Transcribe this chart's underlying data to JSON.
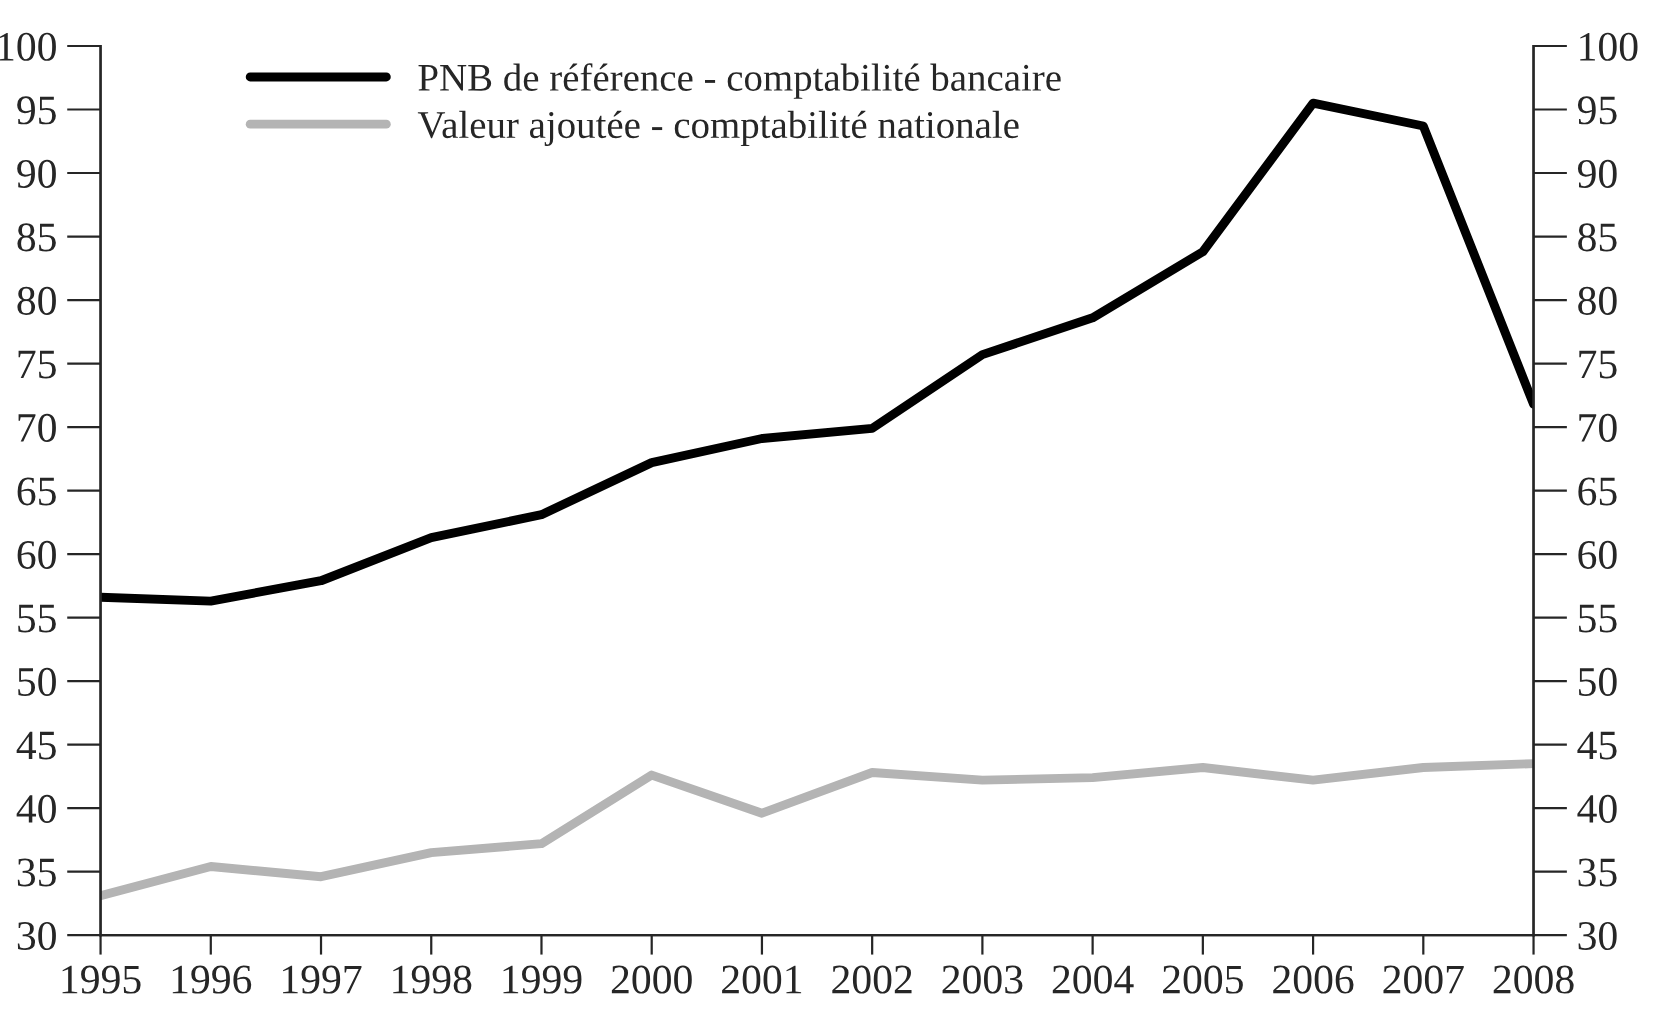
{
  "chart_data": {
    "type": "line",
    "x": [
      1995,
      1996,
      1997,
      1998,
      1999,
      2000,
      2001,
      2002,
      2003,
      2004,
      2005,
      2006,
      2007,
      2008
    ],
    "series": [
      {
        "name": "PNB de référence - comptabilité bancaire",
        "color": "#000000",
        "values": [
          56.6,
          56.3,
          57.9,
          61.3,
          63.1,
          67.2,
          69.1,
          69.9,
          75.7,
          78.6,
          83.8,
          95.5,
          93.7,
          71.8
        ]
      },
      {
        "name": "Valeur ajoutée - comptabilité nationale",
        "color": "#b4b4b4",
        "values": [
          33.1,
          35.4,
          34.6,
          36.5,
          37.2,
          42.6,
          39.6,
          42.8,
          42.2,
          42.4,
          43.2,
          42.2,
          43.2,
          43.5
        ]
      }
    ],
    "xlim": [
      1995,
      2008
    ],
    "xticks": [
      1995,
      1996,
      1997,
      1998,
      1999,
      2000,
      2001,
      2002,
      2003,
      2004,
      2005,
      2006,
      2007,
      2008
    ],
    "ylim": [
      30,
      100
    ],
    "yticks": [
      30,
      35,
      40,
      45,
      50,
      55,
      60,
      65,
      70,
      75,
      80,
      85,
      90,
      95,
      100
    ],
    "y2lim": [
      30,
      100
    ],
    "y2ticks": [
      30,
      35,
      40,
      45,
      50,
      55,
      60,
      65,
      70,
      75,
      80,
      85,
      90,
      95,
      100
    ],
    "grid": false,
    "legend": "top left",
    "marker": "none",
    "line_style": "solid"
  }
}
